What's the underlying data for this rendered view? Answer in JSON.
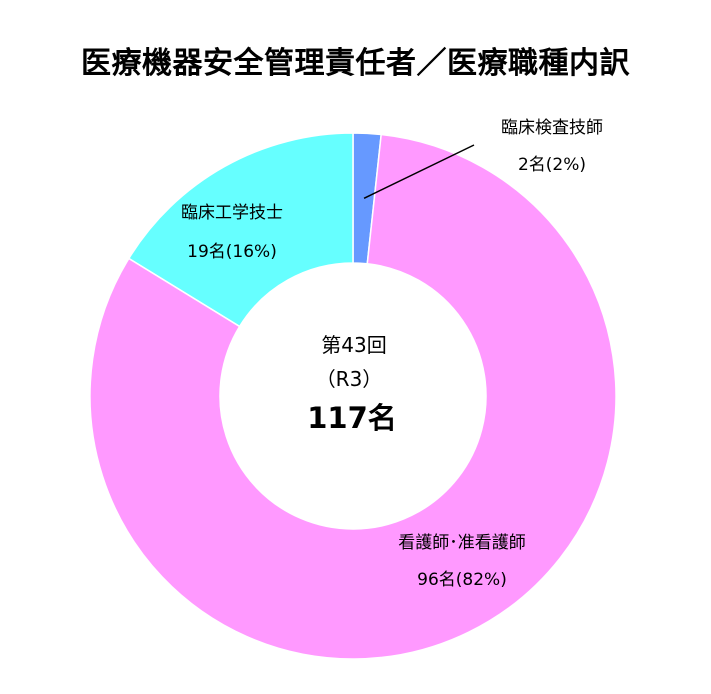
{
  "chart_data": {
    "type": "pie",
    "title": "医療機器安全管理責任者／医療職種内訳",
    "center": {
      "line1": "第43回",
      "line2": "（R3）",
      "total": "117名"
    },
    "slices": [
      {
        "name": "臨床検査技師",
        "value": 2,
        "value_label": "2名(2%)",
        "color": "#6699ff"
      },
      {
        "name": "看護師･准看護師",
        "value": 96,
        "value_label": "96名(82%)",
        "color": "#ff99ff"
      },
      {
        "name": "臨床工学技士",
        "value": 19,
        "value_label": "19名(16%)",
        "color": "#66ffff"
      }
    ],
    "legend": "none"
  }
}
